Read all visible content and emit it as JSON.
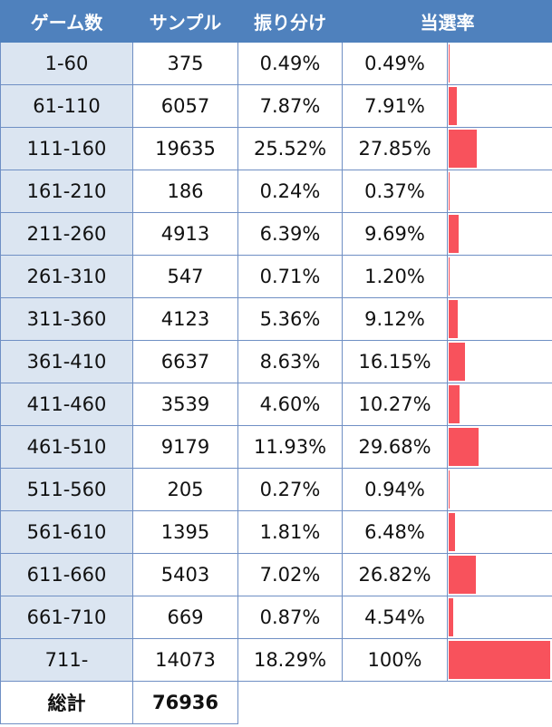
{
  "header": {
    "games": "ゲーム数",
    "samples": "サンプル",
    "allocation": "振り分け",
    "hit_rate": "当選率"
  },
  "rows": [
    {
      "range": "1-60",
      "samples": "375",
      "allocation": "0.49%",
      "hit_rate": "0.49%",
      "bar_fraction": 0.0049
    },
    {
      "range": "61-110",
      "samples": "6057",
      "allocation": "7.87%",
      "hit_rate": "7.91%",
      "bar_fraction": 0.0791
    },
    {
      "range": "111-160",
      "samples": "19635",
      "allocation": "25.52%",
      "hit_rate": "27.85%",
      "bar_fraction": 0.2785
    },
    {
      "range": "161-210",
      "samples": "186",
      "allocation": "0.24%",
      "hit_rate": "0.37%",
      "bar_fraction": 0.0037
    },
    {
      "range": "211-260",
      "samples": "4913",
      "allocation": "6.39%",
      "hit_rate": "9.69%",
      "bar_fraction": 0.0969
    },
    {
      "range": "261-310",
      "samples": "547",
      "allocation": "0.71%",
      "hit_rate": "1.20%",
      "bar_fraction": 0.012
    },
    {
      "range": "311-360",
      "samples": "4123",
      "allocation": "5.36%",
      "hit_rate": "9.12%",
      "bar_fraction": 0.0912
    },
    {
      "range": "361-410",
      "samples": "6637",
      "allocation": "8.63%",
      "hit_rate": "16.15%",
      "bar_fraction": 0.1615
    },
    {
      "range": "411-460",
      "samples": "3539",
      "allocation": "4.60%",
      "hit_rate": "10.27%",
      "bar_fraction": 0.1027
    },
    {
      "range": "461-510",
      "samples": "9179",
      "allocation": "11.93%",
      "hit_rate": "29.68%",
      "bar_fraction": 0.2968
    },
    {
      "range": "511-560",
      "samples": "205",
      "allocation": "0.27%",
      "hit_rate": "0.94%",
      "bar_fraction": 0.0094
    },
    {
      "range": "561-610",
      "samples": "1395",
      "allocation": "1.81%",
      "hit_rate": "6.48%",
      "bar_fraction": 0.0648
    },
    {
      "range": "611-660",
      "samples": "5403",
      "allocation": "7.02%",
      "hit_rate": "26.82%",
      "bar_fraction": 0.2682
    },
    {
      "range": "661-710",
      "samples": "669",
      "allocation": "0.87%",
      "hit_rate": "4.54%",
      "bar_fraction": 0.0454
    },
    {
      "range": "711-",
      "samples": "14073",
      "allocation": "18.29%",
      "hit_rate": "100%",
      "bar_fraction": 1.0
    }
  ],
  "total": {
    "label": "総計",
    "samples": "76936"
  },
  "colors": {
    "header_bg": "#4f81bd",
    "range_bg": "#dbe5f1",
    "bar": "#f8525c",
    "grid": "#6f8fc4"
  }
}
